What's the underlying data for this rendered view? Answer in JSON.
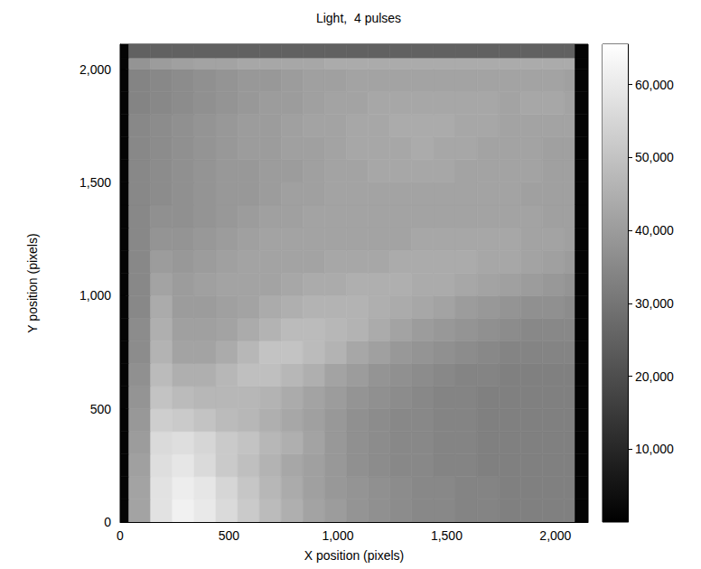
{
  "chart_data": {
    "type": "heatmap",
    "title": "Light,  4 pulses",
    "x_label": "X position (pixels)",
    "y_label": "Y position (pixels)",
    "xlim": [
      0,
      2150
    ],
    "ylim": [
      0,
      2110
    ],
    "xticks": [
      0,
      500,
      1000,
      1500,
      2000
    ],
    "yticks": [
      0,
      500,
      1000,
      1500,
      2000
    ],
    "x_edges": [
      0,
      40,
      140,
      240,
      340,
      440,
      540,
      640,
      740,
      840,
      940,
      1040,
      1140,
      1240,
      1340,
      1440,
      1540,
      1640,
      1740,
      1840,
      1940,
      2040,
      2090,
      2150
    ],
    "y_edges": [
      0,
      100,
      200,
      300,
      400,
      500,
      600,
      700,
      800,
      900,
      1000,
      1100,
      1200,
      1300,
      1400,
      1500,
      1600,
      1700,
      1800,
      1900,
      2000,
      2050,
      2110
    ],
    "cells": [
      [
        1000,
        42000,
        58000,
        62000,
        60000,
        56000,
        52000,
        48000,
        45000,
        42000,
        40000,
        38000,
        37000,
        36000,
        35000,
        35000,
        34000,
        34000,
        33000,
        33000,
        33000,
        33000,
        1000
      ],
      [
        1000,
        42000,
        58000,
        61000,
        59000,
        55000,
        51000,
        47000,
        44000,
        41000,
        39000,
        38000,
        37000,
        36000,
        35000,
        35000,
        34000,
        34000,
        33000,
        33000,
        33000,
        33000,
        1000
      ],
      [
        1000,
        41000,
        57000,
        59000,
        56000,
        52000,
        49000,
        46000,
        43000,
        41000,
        39000,
        37000,
        36000,
        35000,
        35000,
        34000,
        34000,
        33000,
        33000,
        33000,
        33000,
        33000,
        1000
      ],
      [
        1000,
        40000,
        56000,
        57000,
        55000,
        52000,
        50000,
        47000,
        45000,
        42000,
        39000,
        37000,
        36000,
        35000,
        35000,
        34000,
        34000,
        33000,
        33000,
        33000,
        33000,
        33000,
        1000
      ],
      [
        1000,
        39000,
        53000,
        52000,
        50000,
        48000,
        47000,
        45000,
        43000,
        41000,
        39000,
        37000,
        36000,
        35000,
        35000,
        34000,
        34000,
        33000,
        33000,
        33000,
        33000,
        33000,
        1000
      ],
      [
        1000,
        38000,
        50000,
        48000,
        47000,
        47000,
        47000,
        46000,
        44000,
        42000,
        40000,
        38000,
        37000,
        36000,
        35000,
        34000,
        34000,
        33000,
        33000,
        33000,
        33000,
        33000,
        1000
      ],
      [
        1000,
        37000,
        48000,
        45000,
        45000,
        47000,
        49000,
        49000,
        47000,
        45000,
        42000,
        40000,
        38000,
        37000,
        36000,
        35000,
        34000,
        34000,
        33000,
        33000,
        33000,
        33000,
        1000
      ],
      [
        1000,
        36000,
        46000,
        42000,
        42000,
        44000,
        47000,
        50000,
        50000,
        48000,
        46000,
        43000,
        41000,
        39000,
        38000,
        37000,
        36000,
        35000,
        34000,
        34000,
        34000,
        34000,
        1000
      ],
      [
        1000,
        36000,
        45000,
        41000,
        41000,
        42000,
        44000,
        46000,
        48000,
        48000,
        47000,
        46000,
        44000,
        42000,
        40000,
        39000,
        38000,
        37000,
        36000,
        35000,
        35000,
        35000,
        1000
      ],
      [
        1000,
        35000,
        44000,
        40000,
        40000,
        41000,
        42000,
        44000,
        45000,
        46000,
        46000,
        46000,
        45000,
        44000,
        43000,
        42000,
        40000,
        39000,
        38000,
        37000,
        37000,
        36000,
        1000
      ],
      [
        1000,
        35000,
        42000,
        40000,
        41000,
        42000,
        42000,
        42000,
        43000,
        44000,
        44000,
        45000,
        45000,
        45000,
        44000,
        44000,
        43000,
        42000,
        41000,
        40000,
        39000,
        38000,
        1000
      ],
      [
        1000,
        35000,
        40000,
        39000,
        40000,
        41000,
        42000,
        42000,
        42000,
        42000,
        43000,
        43000,
        43000,
        44000,
        44000,
        44000,
        44000,
        43000,
        43000,
        42000,
        41000,
        40000,
        1000
      ],
      [
        1000,
        35000,
        38000,
        38000,
        39000,
        40000,
        41000,
        42000,
        42000,
        42000,
        42000,
        42000,
        42000,
        42000,
        43000,
        43000,
        43000,
        43000,
        43000,
        42000,
        42000,
        41000,
        1000
      ],
      [
        1000,
        35000,
        37000,
        37000,
        38000,
        39000,
        40000,
        41000,
        41000,
        42000,
        42000,
        42000,
        42000,
        42000,
        42000,
        42000,
        42000,
        42000,
        42000,
        42000,
        41000,
        41000,
        1000
      ],
      [
        1000,
        35000,
        36000,
        37000,
        38000,
        39000,
        39000,
        40000,
        41000,
        41000,
        42000,
        42000,
        42000,
        42000,
        42000,
        42000,
        42000,
        42000,
        42000,
        41000,
        41000,
        41000,
        1000
      ],
      [
        1000,
        35000,
        36000,
        37000,
        38000,
        39000,
        39000,
        40000,
        40000,
        41000,
        42000,
        42000,
        43000,
        43000,
        43000,
        43000,
        42000,
        42000,
        42000,
        42000,
        41000,
        41000,
        1000
      ],
      [
        1000,
        35000,
        36000,
        37000,
        38000,
        39000,
        40000,
        40000,
        41000,
        41000,
        42000,
        43000,
        43000,
        43000,
        44000,
        43000,
        43000,
        42000,
        42000,
        42000,
        41000,
        41000,
        1000
      ],
      [
        1000,
        35000,
        36000,
        37000,
        38000,
        39000,
        40000,
        40000,
        41000,
        42000,
        42000,
        43000,
        43000,
        44000,
        44000,
        44000,
        43000,
        43000,
        42000,
        42000,
        42000,
        42000,
        1000
      ],
      [
        1000,
        34000,
        35000,
        36000,
        37000,
        38000,
        39000,
        40000,
        40000,
        41000,
        42000,
        42000,
        43000,
        43000,
        43000,
        43000,
        43000,
        43000,
        42000,
        43000,
        43000,
        42000,
        1000
      ],
      [
        1000,
        34000,
        35000,
        36000,
        37000,
        38000,
        39000,
        39000,
        40000,
        41000,
        41000,
        42000,
        42000,
        42000,
        42000,
        42000,
        42000,
        42000,
        42000,
        42000,
        42000,
        41000,
        1000
      ],
      [
        1000,
        38000,
        40000,
        41000,
        42000,
        42000,
        43000,
        43000,
        43000,
        43000,
        44000,
        44000,
        44000,
        44000,
        44000,
        44000,
        44000,
        44000,
        44000,
        44000,
        44000,
        44000,
        1000
      ],
      [
        1000,
        25000,
        25000,
        25000,
        25000,
        25000,
        25000,
        25000,
        25000,
        25000,
        25000,
        25000,
        25000,
        25000,
        25000,
        25000,
        25000,
        25000,
        25000,
        25000,
        25000,
        25000,
        1000
      ]
    ],
    "colorbar": {
      "range": [
        0,
        65535
      ],
      "ticks": [
        10000,
        20000,
        30000,
        40000,
        50000,
        60000
      ]
    }
  }
}
